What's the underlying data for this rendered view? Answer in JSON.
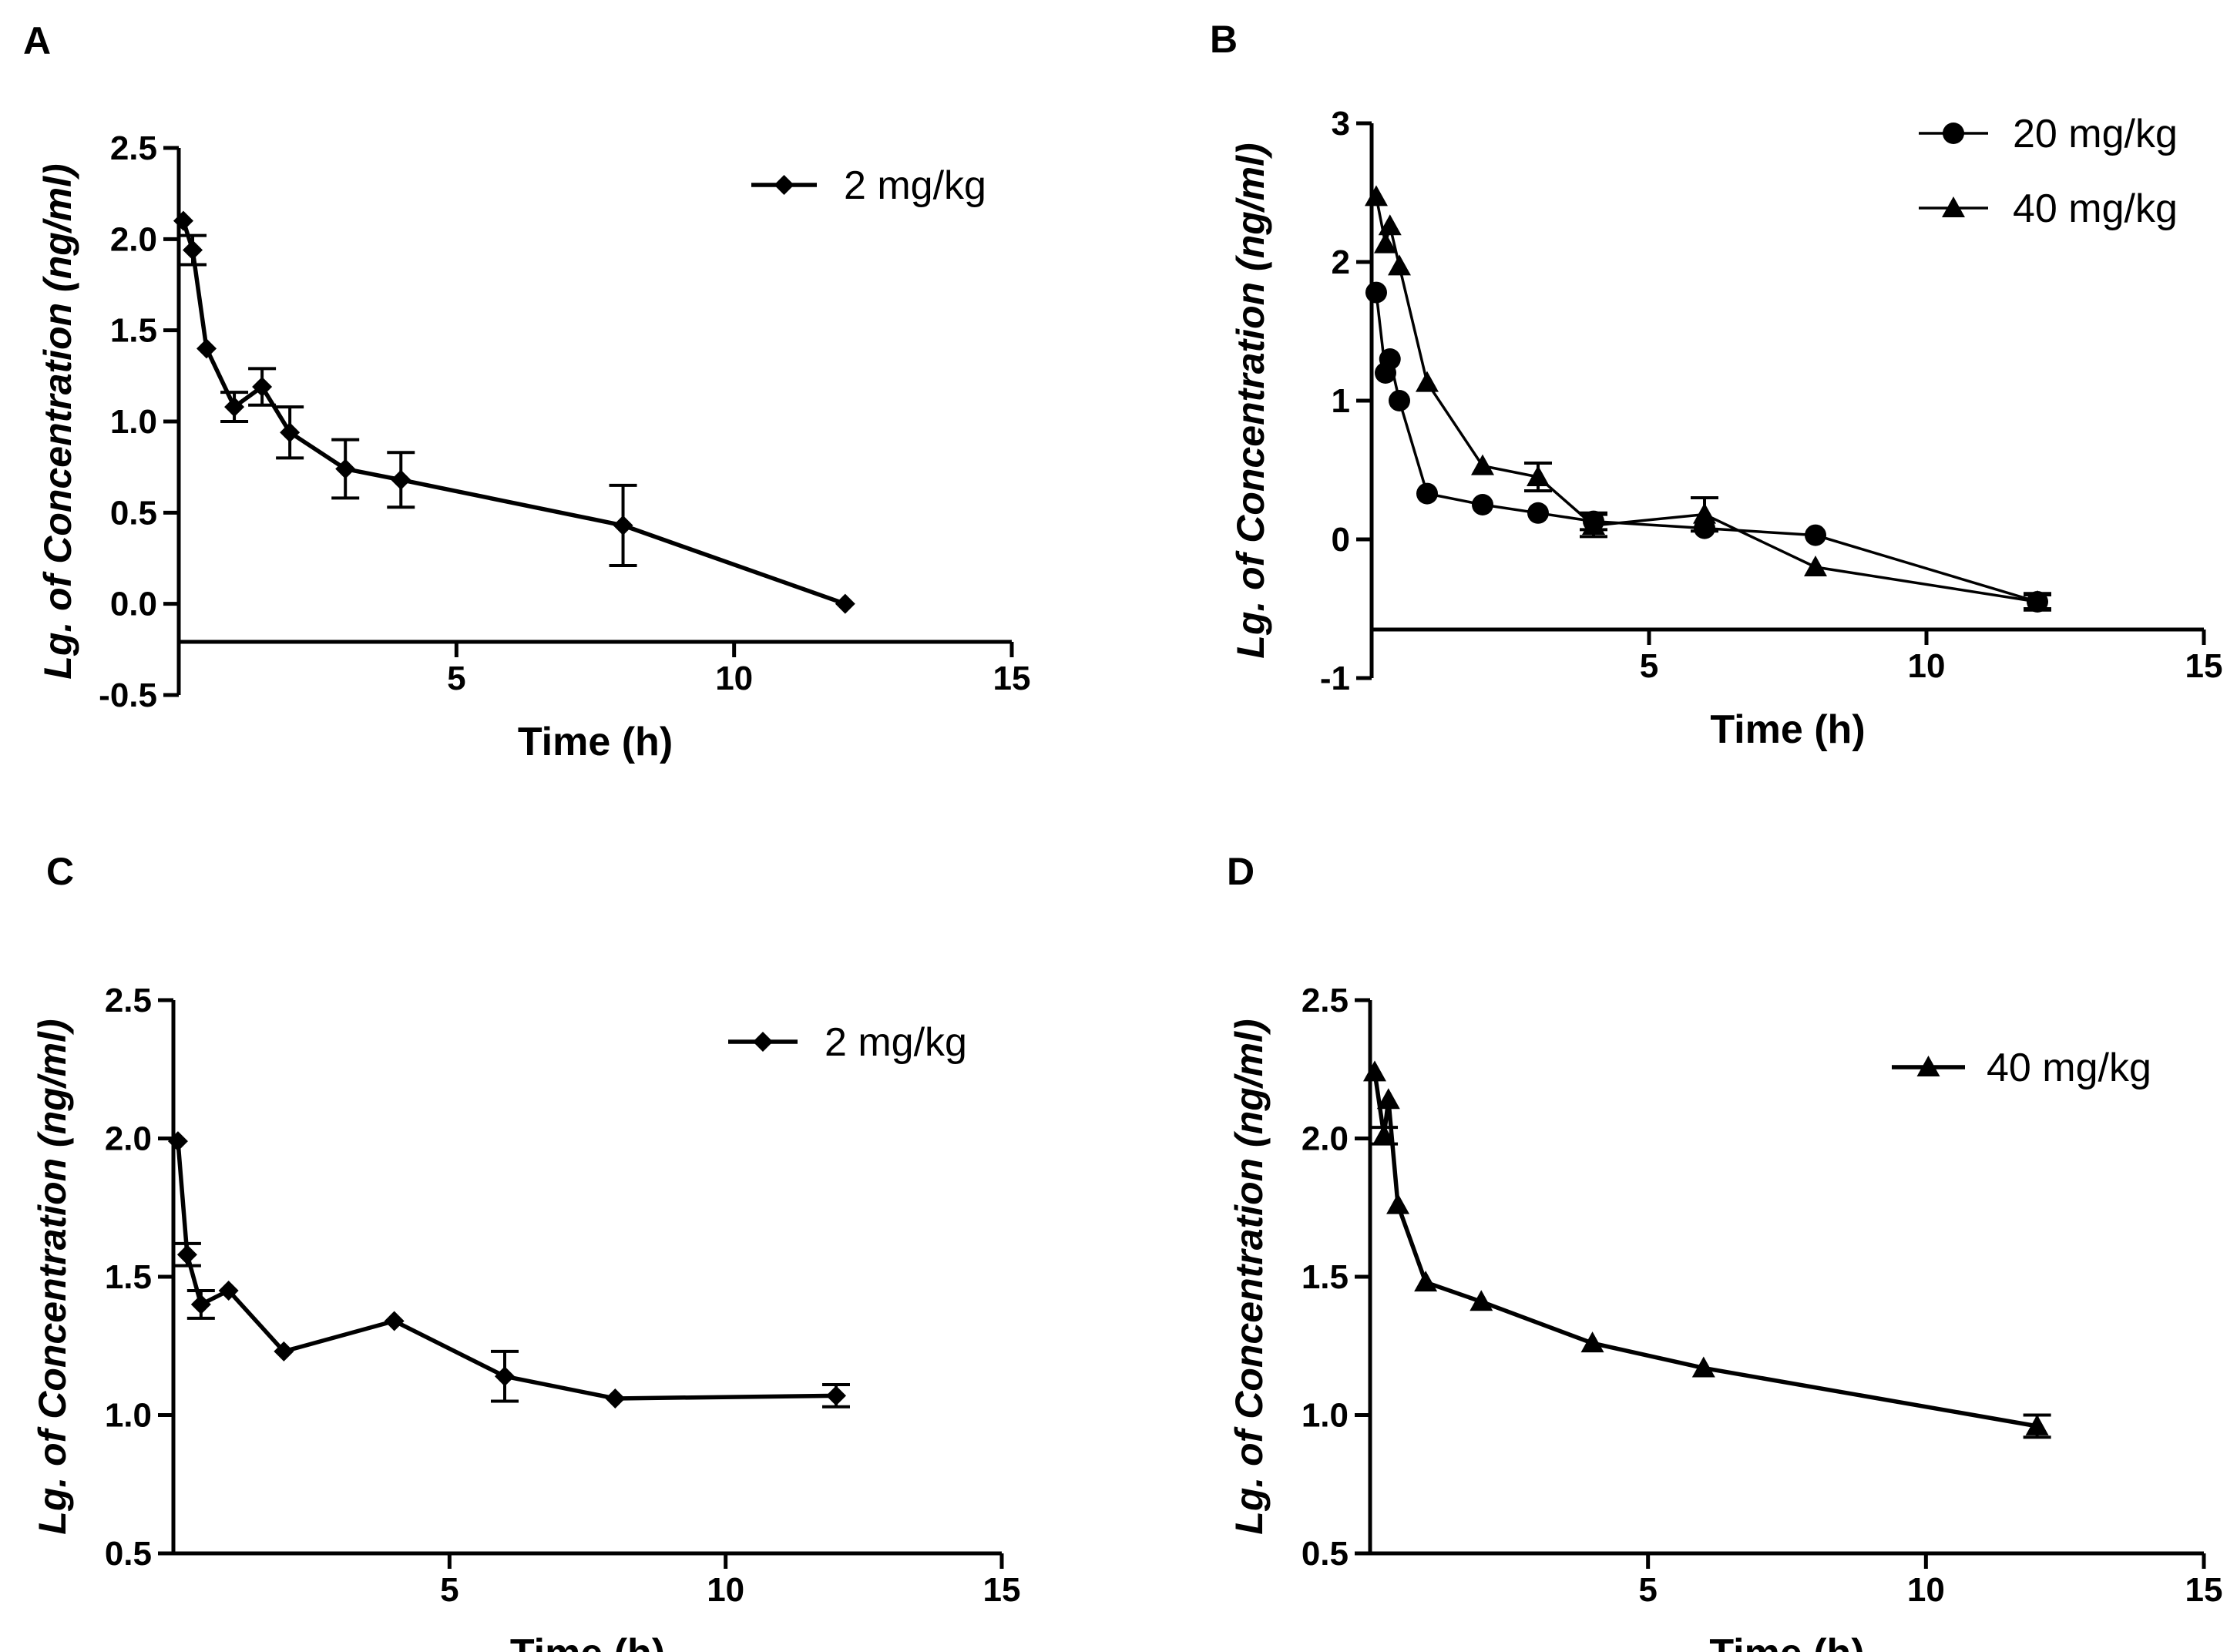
{
  "chart_data": [
    {
      "panel": "A",
      "type": "line",
      "xlabel": "Time (h)",
      "ylabel": "Lg. of Concentration (ng/ml)",
      "xlim": [
        0,
        15
      ],
      "ylim": [
        -0.5,
        2.5
      ],
      "xticks": [
        5,
        10,
        15
      ],
      "yticks": [
        -0.5,
        0.0,
        0.5,
        1.0,
        1.5,
        2.0,
        2.5
      ],
      "ytick_labels": [
        "-0.5",
        "0.0",
        "0.5",
        "1.0",
        "1.5",
        "2.0",
        "2.5"
      ],
      "legend_position": "top-right",
      "series": [
        {
          "name": "2 mg/kg",
          "marker": "diamond",
          "x": [
            0.083,
            0.25,
            0.5,
            1,
            1.5,
            2,
            3,
            4,
            8,
            12
          ],
          "y": [
            2.1,
            1.94,
            1.4,
            1.08,
            1.19,
            0.94,
            0.74,
            0.68,
            0.43,
            0.0
          ],
          "err": [
            0,
            0.08,
            0,
            0.08,
            0.1,
            0.14,
            0.16,
            0.15,
            0.22,
            0
          ]
        }
      ]
    },
    {
      "panel": "B",
      "type": "line",
      "xlabel": "Time (h)",
      "ylabel": "Lg. of Concentration (ng/ml)",
      "xlim": [
        0,
        15
      ],
      "ylim": [
        -1,
        3
      ],
      "xticks": [
        5,
        10,
        15
      ],
      "yticks": [
        -1,
        0,
        1,
        2,
        3
      ],
      "ytick_labels": [
        "-1",
        "0",
        "1",
        "2",
        "3"
      ],
      "x_axis_at": -0.7,
      "legend_position": "top-right",
      "series": [
        {
          "name": "20 mg/kg",
          "marker": "circle",
          "x": [
            0.083,
            0.25,
            0.33,
            0.5,
            1,
            2,
            3,
            4,
            6,
            8,
            12
          ],
          "y": [
            1.78,
            1.2,
            1.3,
            1.0,
            0.33,
            0.25,
            0.19,
            0.13,
            0.08,
            0.03,
            -0.45
          ],
          "err": [
            0,
            0,
            0,
            0,
            0,
            0,
            0,
            0.06,
            0,
            0,
            0.05
          ]
        },
        {
          "name": "40 mg/kg",
          "marker": "triangle",
          "x": [
            0.083,
            0.25,
            0.33,
            0.5,
            1,
            2,
            3,
            4,
            6,
            8,
            12
          ],
          "y": [
            2.47,
            2.13,
            2.26,
            1.97,
            1.13,
            0.53,
            0.45,
            0.1,
            0.18,
            -0.2,
            -0.45
          ],
          "err": [
            0,
            0,
            0,
            0,
            0,
            0,
            0.1,
            0.08,
            0.12,
            0,
            0.06
          ]
        }
      ]
    },
    {
      "panel": "C",
      "type": "line",
      "xlabel": "Time (h)",
      "ylabel": "Lg. of Concentration (ng/ml)",
      "xlim": [
        0,
        15
      ],
      "ylim": [
        0.5,
        2.5
      ],
      "xticks": [
        5,
        10,
        15
      ],
      "yticks": [
        0.5,
        1.0,
        1.5,
        2.0,
        2.5
      ],
      "ytick_labels": [
        "0.5",
        "1.0",
        "1.5",
        "2.0",
        "2.5"
      ],
      "legend_position": "top-right",
      "series": [
        {
          "name": "2 mg/kg",
          "marker": "diamond",
          "x": [
            0.083,
            0.25,
            0.5,
            1,
            2,
            4,
            6,
            8,
            12
          ],
          "y": [
            1.99,
            1.58,
            1.4,
            1.45,
            1.23,
            1.34,
            1.14,
            1.06,
            1.07
          ],
          "err": [
            0,
            0.04,
            0.05,
            0,
            0,
            0,
            0.09,
            0,
            0.04
          ]
        }
      ]
    },
    {
      "panel": "D",
      "type": "line",
      "xlabel": "Time (h)",
      "ylabel": "Lg. of Concentration (ng/ml)",
      "xlim": [
        0,
        15
      ],
      "ylim": [
        0.5,
        2.5
      ],
      "xticks": [
        5,
        10,
        15
      ],
      "yticks": [
        0.5,
        1.0,
        1.5,
        2.0,
        2.5
      ],
      "ytick_labels": [
        "0.5",
        "1.0",
        "1.5",
        "2.0",
        "2.5"
      ],
      "legend_position": "top-right",
      "series": [
        {
          "name": "40 mg/kg",
          "marker": "triangle",
          "x": [
            0.083,
            0.25,
            0.33,
            0.5,
            1,
            2,
            4,
            6,
            12
          ],
          "y": [
            2.24,
            2.01,
            2.14,
            1.76,
            1.48,
            1.41,
            1.26,
            1.17,
            0.96
          ],
          "err": [
            0,
            0.03,
            0,
            0,
            0,
            0,
            0,
            0,
            0.04
          ]
        }
      ]
    }
  ]
}
